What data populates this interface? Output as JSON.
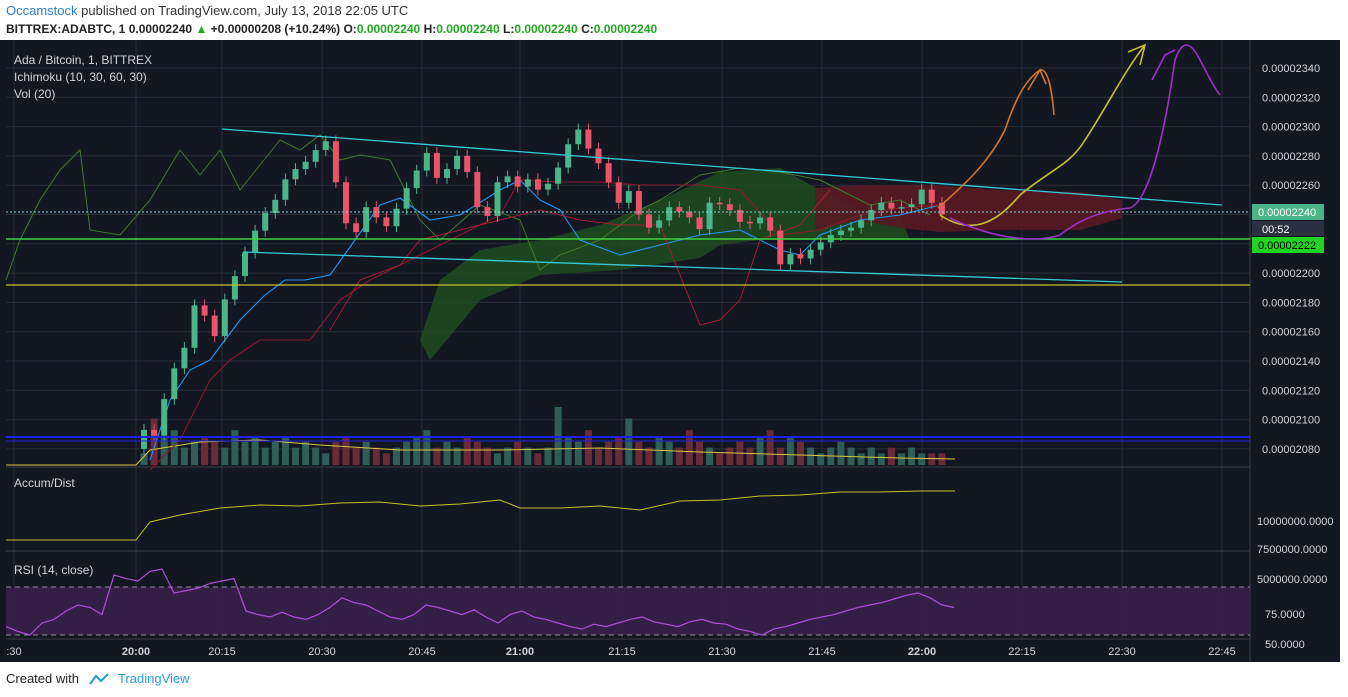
{
  "header": {
    "author": "Occamstock",
    "published_text": " published on TradingView.com, July 13, 2018 22:05 UTC",
    "symbol": "BITTREX:ADABTC, 1",
    "last": "0.00002240",
    "change": "+0.00000208 (+10.24%)",
    "o_label": "O:",
    "o": "0.00002240",
    "h_label": "H:",
    "h": "0.00002240",
    "l_label": "L:",
    "l": "0.00002240",
    "c_label": "C:",
    "c": "0.00002240"
  },
  "legend": {
    "title": "Ada / Bitcoin, 1, BITTREX",
    "ichimoku": "Ichimoku (10, 30, 60, 30)",
    "vol": "Vol (20)",
    "accum": "Accum/Dist",
    "rsi": "RSI (14, close)"
  },
  "price_badges": {
    "last": "0.00002240",
    "countdown": "00:52",
    "level": "0.00002222"
  },
  "footer": {
    "created_with": "Created with",
    "brand": "TradingView"
  },
  "colors": {
    "background": "#131722",
    "up": "#4bb58a",
    "down": "#e8556a",
    "tenkan": "#2196f3",
    "kijun": "#8b1a2a",
    "lagging": "#3f7a2a",
    "cloud_bull": "#1e4d1e",
    "cloud_bear": "#5a1a24",
    "channel": "#36c9d6",
    "yellow_line": "#c7c22a",
    "green_line": "#3fd13f",
    "blue_line": "#2020e0",
    "rsi": "#b04fd8"
  },
  "chart_data": {
    "type": "candlestick",
    "title": "Ada / Bitcoin, 1, BITTREX",
    "time_ticks": [
      ":30",
      "20:00",
      "20:15",
      "20:30",
      "20:45",
      "21:00",
      "21:15",
      "21:30",
      "21:45",
      "22:00",
      "22:15",
      "22:30",
      "22:45"
    ],
    "price_ticks": [
      "0.00002340",
      "0.00002320",
      "0.00002300",
      "0.00002280",
      "0.00002260",
      "0.00002240",
      "0.00002220",
      "0.00002200",
      "0.00002180",
      "0.00002160",
      "0.00002140",
      "0.00002120",
      "0.00002100",
      "0.00002080"
    ],
    "price_ylim": [
      2.07e-05,
      2.35e-05
    ],
    "accum_ticks": [
      "10000000.0000",
      "7500000.0000",
      "5000000.0000"
    ],
    "rsi_ticks": [
      "75.0000",
      "50.0000"
    ],
    "candles_close": [
      2.093e-05,
      2.089e-05,
      2.114e-05,
      2.135e-05,
      2.149e-05,
      2.178e-05,
      2.171e-05,
      2.157e-05,
      2.182e-05,
      2.198e-05,
      2.214e-05,
      2.229e-05,
      2.241e-05,
      2.25e-05,
      2.264e-05,
      2.271e-05,
      2.276e-05,
      2.284e-05,
      2.29e-05,
      2.262e-05,
      2.234e-05,
      2.228e-05,
      2.245e-05,
      2.238e-05,
      2.232e-05,
      2.244e-05,
      2.258e-05,
      2.27e-05,
      2.282e-05,
      2.265e-05,
      2.271e-05,
      2.28e-05,
      2.269e-05,
      2.245e-05,
      2.239e-05,
      2.262e-05,
      2.266e-05,
      2.259e-05,
      2.264e-05,
      2.257e-05,
      2.261e-05,
      2.272e-05,
      2.288e-05,
      2.298e-05,
      2.285e-05,
      2.275e-05,
      2.262e-05,
      2.248e-05,
      2.256e-05,
      2.24e-05,
      2.231e-05,
      2.236e-05,
      2.245e-05,
      2.242e-05,
      2.238e-05,
      2.23e-05,
      2.248e-05,
      2.247e-05,
      2.243e-05,
      2.235e-05,
      2.234e-05,
      2.238e-05,
      2.229e-05,
      2.206e-05,
      2.213e-05,
      2.21e-05,
      2.216e-05,
      2.221e-05,
      2.226e-05,
      2.229e-05,
      2.231e-05,
      2.236e-05,
      2.243e-05,
      2.248e-05,
      2.244e-05,
      2.245e-05,
      2.247e-05,
      2.257e-05,
      2.248e-05,
      2.24e-05
    ],
    "volume_rel": [
      0.2,
      0.8,
      0.5,
      0.6,
      0.3,
      0.4,
      0.5,
      0.4,
      0.3,
      0.6,
      0.4,
      0.5,
      0.3,
      0.4,
      0.5,
      0.3,
      0.4,
      0.3,
      0.2,
      0.4,
      0.5,
      0.3,
      0.4,
      0.3,
      0.2,
      0.3,
      0.4,
      0.5,
      0.6,
      0.3,
      0.4,
      0.3,
      0.5,
      0.4,
      0.3,
      0.2,
      0.3,
      0.4,
      0.3,
      0.2,
      0.3,
      1.0,
      0.5,
      0.4,
      0.6,
      0.3,
      0.4,
      0.5,
      0.8,
      0.4,
      0.3,
      0.5,
      0.4,
      0.3,
      0.6,
      0.4,
      0.3,
      0.2,
      0.3,
      0.4,
      0.3,
      0.5,
      0.6,
      0.3,
      0.5,
      0.4,
      0.3,
      0.2,
      0.3,
      0.4,
      0.3,
      0.2,
      0.3,
      0.2,
      0.3,
      0.2,
      0.3,
      0.2,
      0.2,
      0.2
    ],
    "rsi_values": [
      42,
      38,
      35,
      45,
      48,
      55,
      60,
      58,
      52,
      85,
      82,
      80,
      88,
      90,
      70,
      72,
      74,
      78,
      80,
      82,
      55,
      52,
      50,
      54,
      50,
      48,
      52,
      58,
      66,
      62,
      60,
      55,
      50,
      48,
      52,
      60,
      58,
      55,
      52,
      56,
      50,
      45,
      52,
      55,
      50,
      48,
      45,
      42,
      40,
      44,
      42,
      45,
      48,
      50,
      46,
      44,
      42,
      46,
      48,
      45,
      44,
      40,
      38,
      35,
      40,
      42,
      45,
      48,
      50,
      52,
      55,
      58,
      60,
      62,
      65,
      68,
      70,
      66,
      60,
      58
    ]
  }
}
